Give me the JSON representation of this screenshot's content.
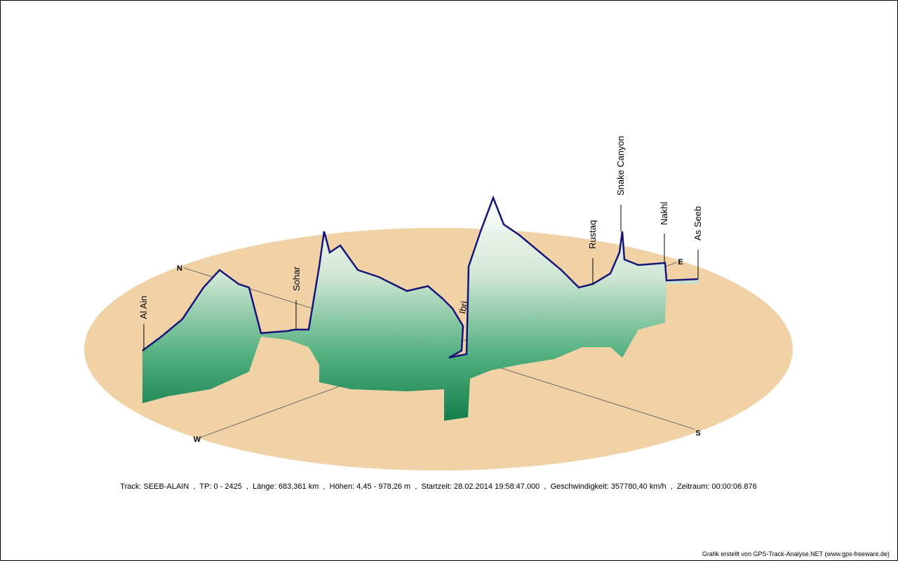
{
  "compass": {
    "north": "N",
    "east": "E",
    "south": "S",
    "west": "W"
  },
  "waypoints": [
    "Al Ain",
    "Sohar",
    "Ibri",
    "Rustaq",
    "Snake Canyon",
    "Nakhl",
    "As Seeb"
  ],
  "info": "Track: SEEB-ALAIN  ,  TP: 0 - 2425  ,  Länge: 683,361 km  ,  Höhen: 4,45 - 978,26 m  ,  Startzeit: 28.02.2014 19:58:47.000  ,  Geschwindigkeit: 357780,40 km/h  ,  Zeitraum: 00:00:06.876",
  "credit": "Grafik erstellt von GPS-Track-Analyse.NET (www.gps-freeware.de)"
}
